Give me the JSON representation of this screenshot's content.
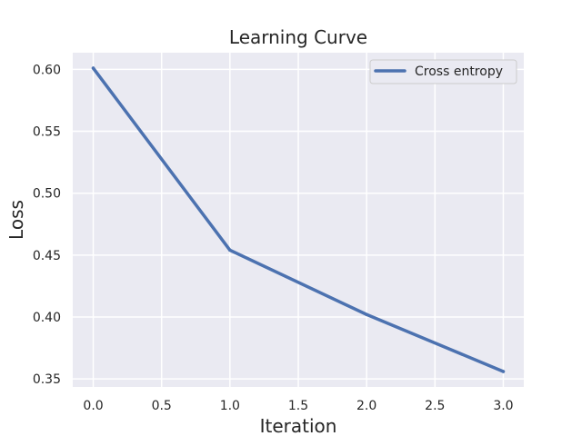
{
  "chart_data": {
    "type": "line",
    "title": "Learning Curve",
    "xlabel": "Iteration",
    "ylabel": "Loss",
    "xlim": [
      -0.15,
      3.15
    ],
    "ylim": [
      0.3435,
      0.6135
    ],
    "xticks": [
      0.0,
      0.5,
      1.0,
      1.5,
      2.0,
      2.5,
      3.0
    ],
    "xtick_labels": [
      "0.0",
      "0.5",
      "1.0",
      "1.5",
      "2.0",
      "2.5",
      "3.0"
    ],
    "yticks": [
      0.35,
      0.4,
      0.45,
      0.5,
      0.55,
      0.6
    ],
    "ytick_labels": [
      "0.35",
      "0.40",
      "0.45",
      "0.50",
      "0.55",
      "0.60"
    ],
    "grid": true,
    "legend_position": "top-right",
    "background_color": "#eaeaf2",
    "grid_color": "#ffffff",
    "series": [
      {
        "name": "Cross entropy",
        "color": "#4c72b0",
        "x": [
          0,
          1,
          2,
          3
        ],
        "y": [
          0.601,
          0.454,
          0.402,
          0.356
        ]
      }
    ]
  }
}
